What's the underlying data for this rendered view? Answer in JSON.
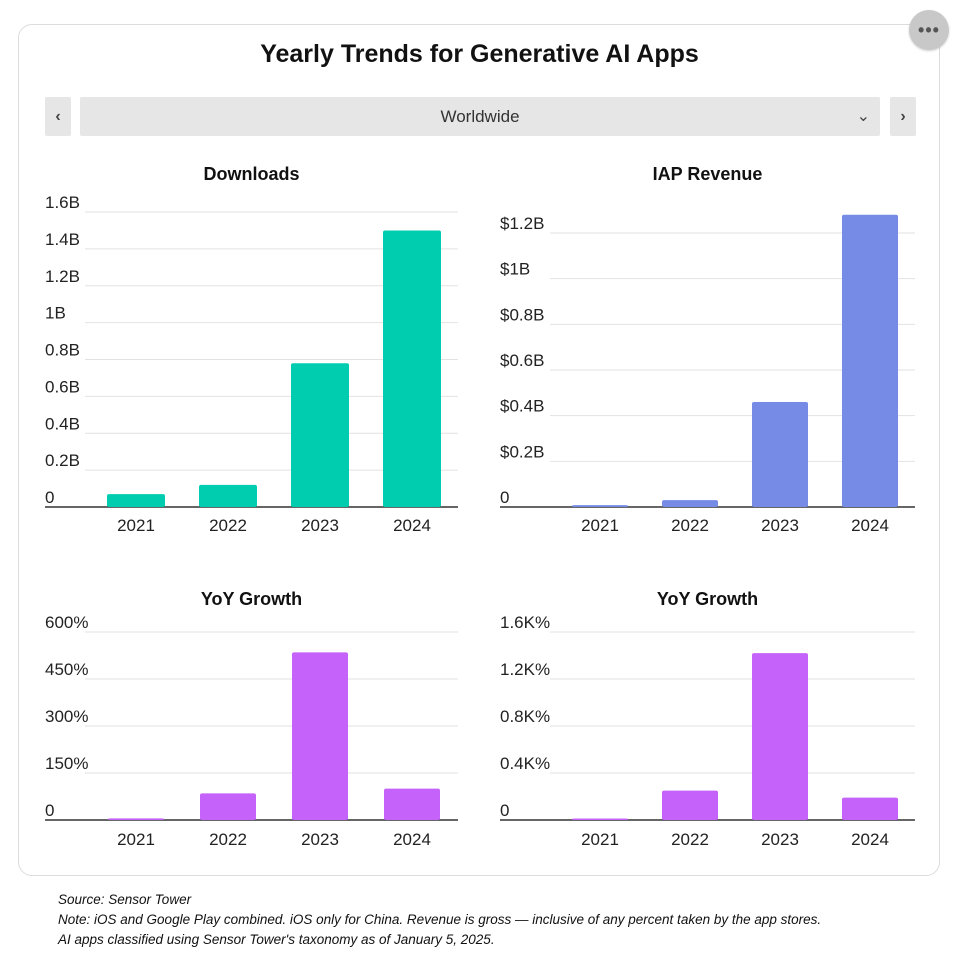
{
  "title": "Yearly Trends for Generative AI Apps",
  "more_icon": "ellipsis-icon",
  "region_selector": {
    "value": "Worldwide",
    "prev_icon": "chevron-left-icon",
    "next_icon": "chevron-right-icon",
    "dropdown_icon": "chevron-down-icon"
  },
  "chart_data": [
    {
      "type": "bar",
      "title": "Downloads",
      "categories": [
        "2021",
        "2022",
        "2023",
        "2024"
      ],
      "values": [
        0.07,
        0.12,
        0.78,
        1.5
      ],
      "ylim": [
        0,
        1.6
      ],
      "yticks": [
        0,
        0.2,
        0.4,
        0.6,
        0.8,
        1.0,
        1.2,
        1.4,
        1.6
      ],
      "ytick_labels": [
        "0",
        "0.2B",
        "0.4B",
        "0.6B",
        "0.8B",
        "1B",
        "1.2B",
        "1.4B",
        "1.6B"
      ],
      "color": "#00cdb0",
      "grid": true
    },
    {
      "type": "bar",
      "title": "IAP Revenue",
      "categories": [
        "2021",
        "2022",
        "2023",
        "2024"
      ],
      "values": [
        0.008,
        0.03,
        0.46,
        1.28
      ],
      "ylim": [
        0,
        1.3
      ],
      "yticks": [
        0,
        0.2,
        0.4,
        0.6,
        0.8,
        1.0,
        1.2
      ],
      "ytick_labels": [
        "0",
        "$0.2B",
        "$0.4B",
        "$0.6B",
        "$0.8B",
        "$1B",
        "$1.2B"
      ],
      "color": "#758be6",
      "grid": true
    },
    {
      "type": "bar",
      "title": "YoY Growth",
      "categories": [
        "2021",
        "2022",
        "2023",
        "2024"
      ],
      "values": [
        5,
        85,
        535,
        100
      ],
      "ylim": [
        0,
        600
      ],
      "yticks": [
        0,
        150,
        300,
        450,
        600
      ],
      "ytick_labels": [
        "0",
        "150%",
        "300%",
        "450%",
        "600%"
      ],
      "color": "#c462fa",
      "grid": true
    },
    {
      "type": "bar",
      "title": "YoY Growth",
      "categories": [
        "2021",
        "2022",
        "2023",
        "2024"
      ],
      "values": [
        10,
        250,
        1420,
        190
      ],
      "ylim": [
        0,
        1600
      ],
      "yticks": [
        0,
        400,
        800,
        1200,
        1600
      ],
      "ytick_labels": [
        "0",
        "0.4K%",
        "0.8K%",
        "1.2K%",
        "1.6K%"
      ],
      "color": "#c462fa",
      "grid": true
    }
  ],
  "footnotes": {
    "source": "Source: Sensor Tower",
    "note": "Note: iOS and Google Play combined. iOS only for China. Revenue is gross — inclusive of any percent taken by the app stores.",
    "taxonomy": "AI apps classified using Sensor Tower's taxonomy as of January 5, 2025."
  }
}
